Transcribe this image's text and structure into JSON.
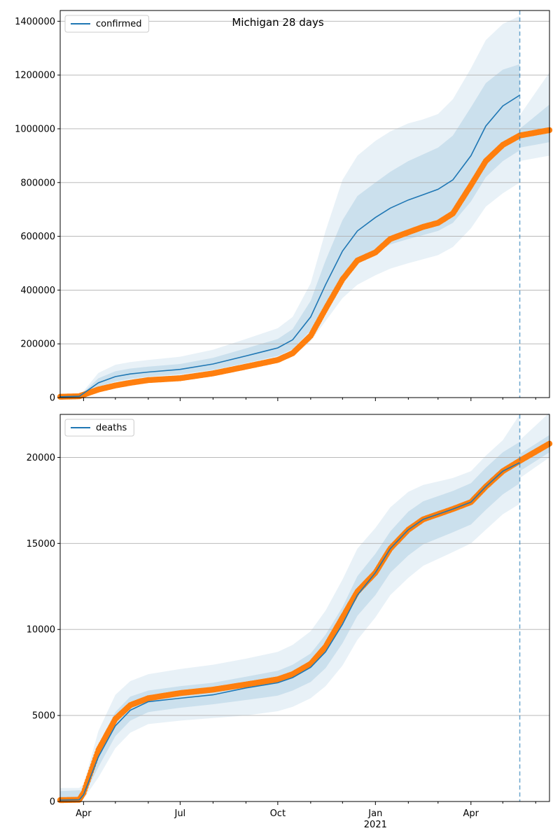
{
  "title": "Michigan 28 days",
  "colors": {
    "model": "#1f77b4",
    "observed": "#ff7f0e",
    "band": "#1f77b4",
    "grid": "#b0b0b0",
    "forecast_line": "#1f77b4"
  },
  "x_ticks": {
    "labels": [
      "Apr",
      "Jul",
      "Oct",
      "Jan",
      "Apr"
    ],
    "dates": [
      "2020-04-01",
      "2020-07-01",
      "2020-10-01",
      "2021-01-01",
      "2021-04-01"
    ],
    "year_label": "2021",
    "year_label_date": "2021-01-01"
  },
  "chart_data": [
    {
      "type": "line",
      "legend": "confirmed",
      "legend_position": "upper-left",
      "xlim": [
        "2020-03-10",
        "2021-06-14"
      ],
      "ylim": [
        0,
        1440000
      ],
      "y_ticks": [
        "0",
        "200000",
        "400000",
        "600000",
        "800000",
        "1000000",
        "1200000",
        "1400000"
      ],
      "grid": "horizontal",
      "forecast_start": "2021-05-17",
      "observed": {
        "x": [
          "2020-03-10",
          "2020-03-28",
          "2020-04-15",
          "2020-05-01",
          "2020-05-15",
          "2020-06-01",
          "2020-07-01",
          "2020-08-01",
          "2020-09-01",
          "2020-10-01",
          "2020-10-15",
          "2020-11-01",
          "2020-11-15",
          "2020-12-01",
          "2020-12-15",
          "2021-01-01",
          "2021-01-15",
          "2021-02-01",
          "2021-02-15",
          "2021-03-01",
          "2021-03-15",
          "2021-04-01",
          "2021-04-15",
          "2021-05-01",
          "2021-05-17",
          "2021-06-14"
        ],
        "y": [
          3000,
          5000,
          30000,
          45000,
          55000,
          65000,
          72000,
          90000,
          115000,
          140000,
          165000,
          230000,
          330000,
          440000,
          510000,
          540000,
          590000,
          615000,
          635000,
          650000,
          685000,
          790000,
          880000,
          940000,
          975000,
          995000
        ]
      },
      "model": {
        "x": [
          "2020-03-10",
          "2020-03-28",
          "2020-04-15",
          "2020-05-01",
          "2020-05-15",
          "2020-06-01",
          "2020-07-01",
          "2020-08-01",
          "2020-09-01",
          "2020-10-01",
          "2020-10-15",
          "2020-11-01",
          "2020-11-15",
          "2020-12-01",
          "2020-12-15",
          "2021-01-01",
          "2021-01-15",
          "2021-02-01",
          "2021-02-15",
          "2021-03-01",
          "2021-03-15",
          "2021-04-01",
          "2021-04-15",
          "2021-05-01",
          "2021-05-17"
        ],
        "y": [
          3000,
          5000,
          55000,
          78000,
          88000,
          95000,
          105000,
          125000,
          155000,
          185000,
          215000,
          300000,
          420000,
          545000,
          620000,
          670000,
          705000,
          735000,
          755000,
          775000,
          810000,
          900000,
          1010000,
          1085000,
          1125000
        ],
        "bands": [
          {
            "lower": [
              3000,
              5000,
              40000,
              60000,
              70000,
              78000,
              87000,
              103000,
              128000,
              155000,
              180000,
              250000,
              340000,
              440000,
              500000,
              540000,
              570000,
              590000,
              605000,
              620000,
              650000,
              730000,
              820000,
              880000,
              920000
            ],
            "upper": [
              3000,
              5000,
              72000,
              98000,
              108000,
              115000,
              125000,
              148000,
              183000,
              218000,
              255000,
              360000,
              510000,
              660000,
              750000,
              800000,
              840000,
              880000,
              905000,
              930000,
              975000,
              1080000,
              1170000,
              1220000,
              1240000
            ]
          },
          {
            "lower": [
              3000,
              5000,
              28000,
              48000,
              58000,
              65000,
              72000,
              86000,
              108000,
              132000,
              152000,
              210000,
              285000,
              370000,
              420000,
              455000,
              480000,
              500000,
              515000,
              530000,
              560000,
              630000,
              710000,
              760000,
              800000
            ],
            "upper": [
              3000,
              5000,
              92000,
              122000,
              132000,
              140000,
              152000,
              178000,
              218000,
              258000,
              300000,
              425000,
              620000,
              810000,
              900000,
              955000,
              990000,
              1020000,
              1035000,
              1055000,
              1110000,
              1225000,
              1330000,
              1390000,
              1420000
            ]
          }
        ]
      },
      "bands_after": {
        "x": [
          "2021-05-17",
          "2021-06-14"
        ],
        "inner_lower": [
          930000,
          950000
        ],
        "inner_upper": [
          1000000,
          1090000
        ],
        "outer_lower": [
          880000,
          900000
        ],
        "outer_upper": [
          1050000,
          1210000
        ]
      }
    },
    {
      "type": "line",
      "legend": "deaths",
      "legend_position": "upper-left",
      "xlim": [
        "2020-03-10",
        "2021-06-14"
      ],
      "ylim": [
        0,
        22500
      ],
      "y_ticks": [
        "0",
        "5000",
        "10000",
        "15000",
        "20000"
      ],
      "grid": "horizontal",
      "forecast_start": "2021-05-17",
      "observed": {
        "x": [
          "2020-03-10",
          "2020-03-28",
          "2020-04-01",
          "2020-04-15",
          "2020-05-01",
          "2020-05-15",
          "2020-06-01",
          "2020-07-01",
          "2020-08-01",
          "2020-09-01",
          "2020-10-01",
          "2020-10-15",
          "2020-11-01",
          "2020-11-15",
          "2020-12-01",
          "2020-12-15",
          "2021-01-01",
          "2021-01-15",
          "2021-02-01",
          "2021-02-15",
          "2021-03-01",
          "2021-03-15",
          "2021-04-01",
          "2021-04-15",
          "2021-05-01",
          "2021-05-17",
          "2021-06-14"
        ],
        "y": [
          80,
          100,
          500,
          3000,
          4800,
          5600,
          6000,
          6300,
          6500,
          6800,
          7100,
          7400,
          8000,
          9000,
          10700,
          12200,
          13300,
          14700,
          15800,
          16400,
          16700,
          17000,
          17400,
          18300,
          19200,
          19800,
          20800
        ]
      },
      "model": {
        "x": [
          "2020-03-10",
          "2020-03-28",
          "2020-04-01",
          "2020-04-15",
          "2020-05-01",
          "2020-05-15",
          "2020-06-01",
          "2020-07-01",
          "2020-08-01",
          "2020-09-01",
          "2020-10-01",
          "2020-10-15",
          "2020-11-01",
          "2020-11-15",
          "2020-12-01",
          "2020-12-15",
          "2021-01-01",
          "2021-01-15",
          "2021-02-01",
          "2021-02-15",
          "2021-03-01",
          "2021-03-15",
          "2021-04-01",
          "2021-04-15",
          "2021-05-01",
          "2021-05-17"
        ],
        "y": [
          80,
          100,
          400,
          2600,
          4400,
          5300,
          5800,
          6000,
          6200,
          6600,
          6900,
          7200,
          7800,
          8700,
          10300,
          12000,
          13300,
          14700,
          15800,
          16400,
          16700,
          17000,
          17400,
          18300,
          19200,
          19700
        ],
        "bands": [
          {
            "lower": [
              80,
              100,
              300,
              2000,
              3800,
              4700,
              5200,
              5450,
              5650,
              5900,
              6150,
              6450,
              6950,
              7750,
              9200,
              10800,
              12000,
              13300,
              14300,
              14950,
              15300,
              15650,
              16100,
              16950,
              17850,
              18500
            ],
            "upper": [
              600,
              650,
              650,
              3300,
              5200,
              6100,
              6450,
              6700,
              6900,
              7250,
              7600,
              7950,
              8600,
              9700,
              11300,
              13100,
              14400,
              15700,
              16850,
              17450,
              17750,
              18050,
              18500,
              19400,
              20300,
              20900
            ]
          },
          {
            "lower": [
              0,
              0,
              150,
              1400,
              3100,
              4000,
              4500,
              4700,
              4850,
              5000,
              5250,
              5500,
              6000,
              6700,
              7900,
              9400,
              10700,
              12000,
              13000,
              13700,
              14100,
              14500,
              15000,
              15800,
              16700,
              17300
            ],
            "upper": [
              780,
              790,
              1000,
              4100,
              6200,
              7000,
              7400,
              7700,
              7950,
              8300,
              8700,
              9100,
              9900,
              11100,
              12900,
              14700,
              15900,
              17100,
              18000,
              18400,
              18600,
              18800,
              19200,
              20100,
              21000,
              22500
            ]
          }
        ]
      },
      "bands_after": {
        "x": [
          "2021-05-17",
          "2021-06-14"
        ],
        "inner_lower": [
          19200,
          20300
        ],
        "inner_upper": [
          20200,
          21300
        ],
        "outer_lower": [
          18800,
          20000
        ],
        "outer_upper": [
          21000,
          22600
        ]
      }
    }
  ]
}
